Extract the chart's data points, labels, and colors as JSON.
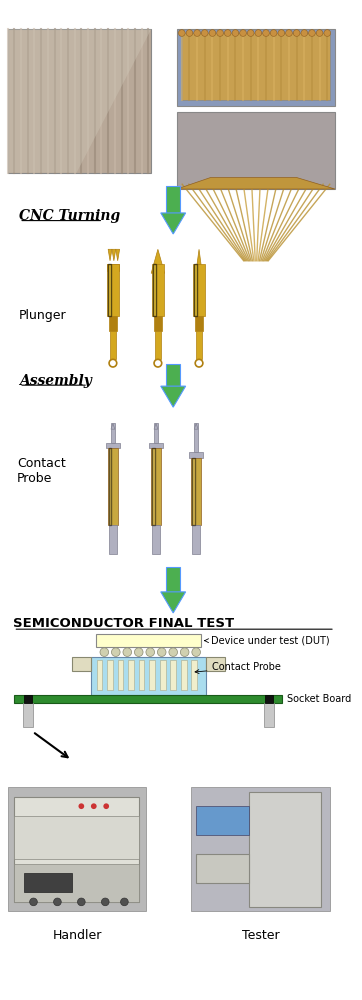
{
  "bg_color": "#ffffff",
  "arrow_color": "#4CAF50",
  "arrow_outline": "#5599FF",
  "cnc_label": "CNC Turning",
  "assembly_label": "Assembly",
  "plunger_label": "Plunger",
  "contact_probe_label": "Contact\nProbe",
  "semicon_title": "SEMICONDUCTOR FINAL TEST",
  "dut_label": "Device under test (DUT)",
  "contact_probe_label2": "Contact Probe",
  "socket_board_label": "Socket Board",
  "handler_label": "Handler",
  "tester_label": "Tester",
  "green_board_color": "#2e8b2e",
  "cyan_socket_color": "#aaddee",
  "dut_color": "#ffffcc",
  "probe_color": "#e8e8cc"
}
